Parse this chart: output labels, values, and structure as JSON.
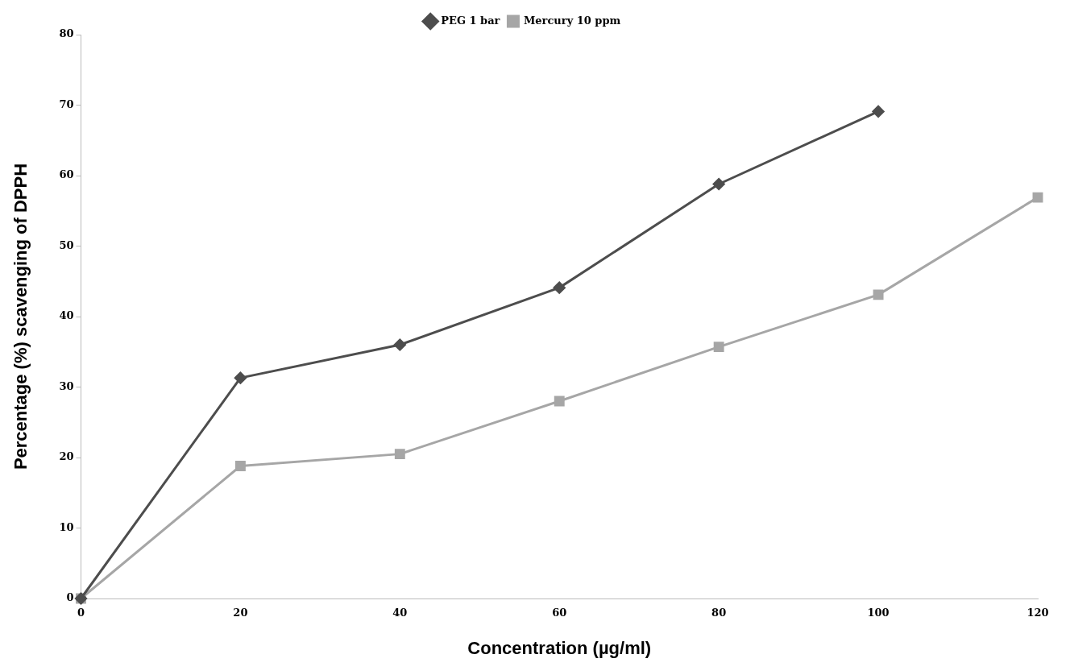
{
  "chart_data": {
    "type": "line",
    "xlabel": "Concentration (µg/ml)",
    "ylabel": "Percentage (%) scavenging of DPPH",
    "xlim": [
      0,
      120
    ],
    "xticks": [
      0,
      20,
      40,
      60,
      80,
      100,
      120
    ],
    "ylim": [
      0,
      80
    ],
    "yticks": [
      0,
      10,
      20,
      30,
      40,
      50,
      60,
      70,
      80
    ],
    "grid": false,
    "legend": "top",
    "series": [
      {
        "name": "PEG 1 bar",
        "color": "#4d4d4d",
        "marker": "diamond",
        "x": [
          0,
          20,
          40,
          60,
          80,
          100
        ],
        "values": [
          0,
          31.3,
          36.0,
          44.1,
          58.8,
          69.1
        ]
      },
      {
        "name": "Mercury 10 ppm",
        "color": "#a6a6a6",
        "marker": "square",
        "x": [
          0,
          20,
          40,
          60,
          80,
          100,
          120
        ],
        "values": [
          0,
          18.8,
          20.5,
          28.0,
          35.7,
          43.1,
          56.9
        ]
      }
    ]
  }
}
